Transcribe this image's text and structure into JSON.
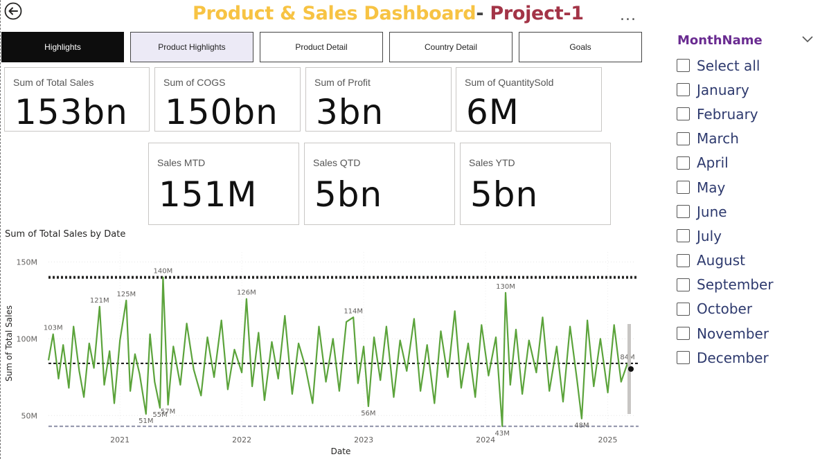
{
  "header": {
    "title_part1": "Product & Sales Dashboard",
    "title_sep": "- ",
    "title_part2": "Project-1",
    "more_label": "..."
  },
  "nav_tabs": [
    {
      "label": "Highlights",
      "state": "active"
    },
    {
      "label": "Product Highlights",
      "state": "selected"
    },
    {
      "label": "Product Detail",
      "state": "normal"
    },
    {
      "label": "Country Detail",
      "state": "normal"
    },
    {
      "label": "Goals",
      "state": "normal"
    }
  ],
  "kpis_row1": [
    {
      "label": "Sum of Total Sales",
      "value": "153bn"
    },
    {
      "label": "Sum of COGS",
      "value": "150bn"
    },
    {
      "label": "Sum of Profit",
      "value": "3bn"
    },
    {
      "label": "Sum of QuantitySold",
      "value": "6M"
    }
  ],
  "kpis_row2": [
    {
      "label": "Sales MTD",
      "value": "151M"
    },
    {
      "label": "Sales QTD",
      "value": "5bn"
    },
    {
      "label": "Sales YTD",
      "value": "5bn"
    }
  ],
  "chart_data": {
    "type": "line",
    "title": "Sum of Total Sales by Date",
    "xlabel": "Date",
    "ylabel": "Sum of Total Sales",
    "x_tick_labels": [
      "2021",
      "2022",
      "2023",
      "2024",
      "2025"
    ],
    "y_tick_labels": [
      "150M",
      "100M",
      "50M"
    ],
    "y_ticks": [
      150,
      100,
      50
    ],
    "y_unit": "M",
    "ylim": [
      42,
      152
    ],
    "x_range": [
      "2020-06",
      "2025-03"
    ],
    "color": "#5BA33B",
    "reference_lines": [
      {
        "kind": "max",
        "value": 140,
        "color": "#252423",
        "style": "dotted"
      },
      {
        "kind": "average",
        "value": 84,
        "color": "#111111",
        "style": "dashed"
      },
      {
        "kind": "min",
        "value": 43,
        "color": "#8C8FA6",
        "style": "dashed"
      }
    ],
    "annotations": [
      {
        "date": "2020-06-15",
        "value": 103,
        "label": "103M"
      },
      {
        "date": "2020-11-01",
        "value": 121,
        "label": "121M"
      },
      {
        "date": "2021-01-20",
        "value": 125,
        "label": "125M"
      },
      {
        "date": "2021-05-10",
        "value": 140,
        "label": "140M"
      },
      {
        "date": "2022-01-15",
        "value": 126,
        "label": "126M"
      },
      {
        "date": "2022-12-01",
        "value": 114,
        "label": "114M"
      },
      {
        "date": "2024-03-01",
        "value": 130,
        "label": "130M"
      },
      {
        "date": "2021-05-01",
        "value": 55,
        "label": "55M"
      },
      {
        "date": "2021-05-25",
        "value": 57,
        "label": "57M"
      },
      {
        "date": "2021-03-20",
        "value": 51,
        "label": "51M"
      },
      {
        "date": "2023-01-15",
        "value": 56,
        "label": "56M"
      },
      {
        "date": "2024-02-20",
        "value": 43,
        "label": "43M"
      },
      {
        "date": "2024-10-15",
        "value": 48,
        "label": "48M"
      },
      {
        "date": "2025-03-01",
        "value": 84,
        "label": "84M"
      }
    ],
    "series": [
      {
        "name": "Sum of Total Sales",
        "points": [
          [
            "2020-06-01",
            86
          ],
          [
            "2020-06-15",
            103
          ],
          [
            "2020-07-01",
            74
          ],
          [
            "2020-07-15",
            96
          ],
          [
            "2020-08-01",
            68
          ],
          [
            "2020-08-15",
            108
          ],
          [
            "2020-09-01",
            79
          ],
          [
            "2020-09-15",
            62
          ],
          [
            "2020-10-01",
            97
          ],
          [
            "2020-10-15",
            81
          ],
          [
            "2020-11-01",
            121
          ],
          [
            "2020-11-15",
            70
          ],
          [
            "2020-12-01",
            92
          ],
          [
            "2020-12-15",
            58
          ],
          [
            "2021-01-01",
            99
          ],
          [
            "2021-01-20",
            125
          ],
          [
            "2021-02-01",
            66
          ],
          [
            "2021-02-15",
            90
          ],
          [
            "2021-03-01",
            77
          ],
          [
            "2021-03-20",
            51
          ],
          [
            "2021-04-01",
            103
          ],
          [
            "2021-04-15",
            72
          ],
          [
            "2021-05-01",
            55
          ],
          [
            "2021-05-10",
            140
          ],
          [
            "2021-05-25",
            57
          ],
          [
            "2021-06-10",
            95
          ],
          [
            "2021-07-01",
            70
          ],
          [
            "2021-07-20",
            110
          ],
          [
            "2021-08-10",
            80
          ],
          [
            "2021-09-01",
            63
          ],
          [
            "2021-09-20",
            101
          ],
          [
            "2021-10-10",
            75
          ],
          [
            "2021-11-01",
            112
          ],
          [
            "2021-11-20",
            67
          ],
          [
            "2021-12-10",
            93
          ],
          [
            "2022-01-01",
            78
          ],
          [
            "2022-01-15",
            126
          ],
          [
            "2022-02-01",
            69
          ],
          [
            "2022-02-20",
            104
          ],
          [
            "2022-03-10",
            60
          ],
          [
            "2022-04-01",
            98
          ],
          [
            "2022-04-20",
            74
          ],
          [
            "2022-05-10",
            115
          ],
          [
            "2022-06-01",
            64
          ],
          [
            "2022-06-20",
            97
          ],
          [
            "2022-07-10",
            82
          ],
          [
            "2022-08-01",
            58
          ],
          [
            "2022-08-20",
            108
          ],
          [
            "2022-09-10",
            72
          ],
          [
            "2022-10-01",
            100
          ],
          [
            "2022-10-20",
            66
          ],
          [
            "2022-11-10",
            111
          ],
          [
            "2022-12-01",
            114
          ],
          [
            "2022-12-15",
            71
          ],
          [
            "2023-01-01",
            95
          ],
          [
            "2023-01-15",
            56
          ],
          [
            "2023-02-01",
            101
          ],
          [
            "2023-02-20",
            73
          ],
          [
            "2023-03-10",
            108
          ],
          [
            "2023-04-01",
            62
          ],
          [
            "2023-04-20",
            99
          ],
          [
            "2023-05-10",
            79
          ],
          [
            "2023-06-01",
            113
          ],
          [
            "2023-06-20",
            66
          ],
          [
            "2023-07-10",
            96
          ],
          [
            "2023-08-01",
            58
          ],
          [
            "2023-08-20",
            105
          ],
          [
            "2023-09-10",
            75
          ],
          [
            "2023-10-01",
            118
          ],
          [
            "2023-10-20",
            68
          ],
          [
            "2023-11-10",
            97
          ],
          [
            "2023-12-01",
            62
          ],
          [
            "2023-12-20",
            109
          ],
          [
            "2024-01-10",
            76
          ],
          [
            "2024-02-01",
            101
          ],
          [
            "2024-02-20",
            43
          ],
          [
            "2024-03-01",
            130
          ],
          [
            "2024-03-15",
            70
          ],
          [
            "2024-04-01",
            106
          ],
          [
            "2024-04-20",
            64
          ],
          [
            "2024-05-10",
            99
          ],
          [
            "2024-06-01",
            78
          ],
          [
            "2024-06-20",
            114
          ],
          [
            "2024-07-10",
            66
          ],
          [
            "2024-08-01",
            95
          ],
          [
            "2024-08-20",
            59
          ],
          [
            "2024-09-10",
            108
          ],
          [
            "2024-10-01",
            73
          ],
          [
            "2024-10-15",
            48
          ],
          [
            "2024-11-01",
            112
          ],
          [
            "2024-11-20",
            69
          ],
          [
            "2024-12-10",
            100
          ],
          [
            "2025-01-01",
            65
          ],
          [
            "2025-01-20",
            109
          ],
          [
            "2025-02-10",
            72
          ],
          [
            "2025-03-01",
            84
          ]
        ]
      }
    ]
  },
  "slicer": {
    "title": "MonthName",
    "items": [
      "Select all",
      "January",
      "February",
      "March",
      "April",
      "May",
      "June",
      "July",
      "August",
      "September",
      "October",
      "November",
      "December"
    ]
  },
  "colors": {
    "title_primary": "#F7C343",
    "title_secondary": "#A33447",
    "line": "#5BA33B",
    "slicer_title": "#6A2C91",
    "slicer_text": "#2E3A6E",
    "tab_active": "#0d0d0d",
    "tab_selected": "#eceaf6"
  },
  "icons": {
    "back": "back-arrow-icon",
    "more": "more-options-icon",
    "chevron": "chevron-down-icon"
  }
}
